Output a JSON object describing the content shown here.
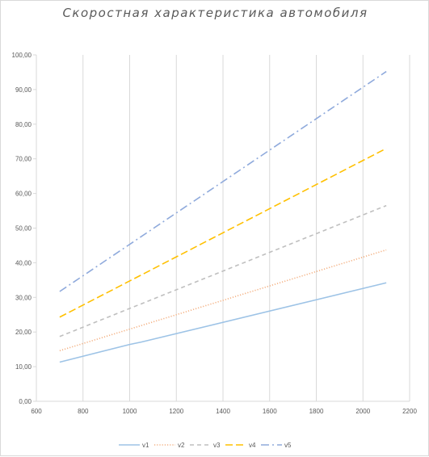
{
  "chart_data": {
    "type": "line",
    "title": "Скоростная характеристика автомобиля",
    "xlabel": "",
    "ylabel": "",
    "xlim": [
      600,
      2200
    ],
    "ylim": [
      0,
      100
    ],
    "x_ticks": [
      600,
      800,
      1000,
      1200,
      1400,
      1600,
      1800,
      2000,
      2200
    ],
    "y_ticks": [
      "0,00",
      "10,00",
      "20,00",
      "30,00",
      "40,00",
      "50,00",
      "60,00",
      "70,00",
      "80,00",
      "90,00",
      "100,00"
    ],
    "grid": "vertical",
    "legend_position": "bottom",
    "series": [
      {
        "name": "v1",
        "color": "#9dc3e6",
        "dash": "solid",
        "x": [
          700,
          1000,
          1050,
          2100
        ],
        "y": [
          11.3,
          16.4,
          17.1,
          34.2
        ]
      },
      {
        "name": "v2",
        "color": "#f4b183",
        "dash": "dotted",
        "x": [
          700,
          2100
        ],
        "y": [
          14.6,
          43.7
        ]
      },
      {
        "name": "v3",
        "color": "#bfbfbf",
        "dash": "dashed",
        "x": [
          700,
          2100
        ],
        "y": [
          18.7,
          56.5
        ]
      },
      {
        "name": "v4",
        "color": "#ffc000",
        "dash": "longdash",
        "x": [
          700,
          2100
        ],
        "y": [
          24.3,
          73.0
        ]
      },
      {
        "name": "v5",
        "color": "#8faadc",
        "dash": "dashdot",
        "x": [
          700,
          2100
        ],
        "y": [
          31.7,
          95.2
        ]
      }
    ]
  }
}
